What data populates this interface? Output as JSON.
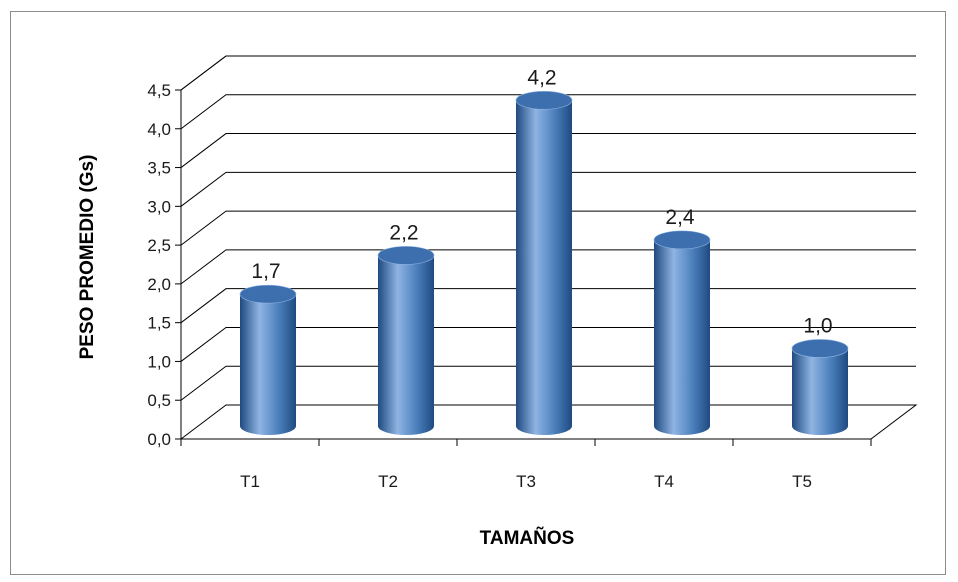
{
  "chart_data": {
    "type": "bar",
    "style": "3d-cylinder",
    "title": "",
    "xlabel": "TAMAÑOS",
    "ylabel": "PESO PROMEDIO (Gs)",
    "categories": [
      "T1",
      "T2",
      "T3",
      "T4",
      "T5"
    ],
    "values": [
      1.7,
      2.2,
      4.2,
      2.4,
      1.0
    ],
    "data_labels": [
      "1,7",
      "2,2",
      "4,2",
      "2,4",
      "1,0"
    ],
    "ylim": [
      0,
      4.5
    ],
    "y_ticks": [
      0,
      0.5,
      1,
      1.5,
      2,
      2.5,
      3,
      3.5,
      4,
      4.5
    ],
    "y_tick_labels": [
      "0,0",
      "0,5",
      "1,0",
      "1,5",
      "2,0",
      "2,5",
      "3,0",
      "3,5",
      "4,0",
      "4,5"
    ],
    "grid": true,
    "legend": "none",
    "colors": {
      "bar": "#4a7ebb",
      "bar_dark": "#1f4a80",
      "bar_light": "#8fb4e3",
      "bar_top": "#3d6fae",
      "grid": "#000000",
      "frame": "#8c8c8c"
    }
  }
}
